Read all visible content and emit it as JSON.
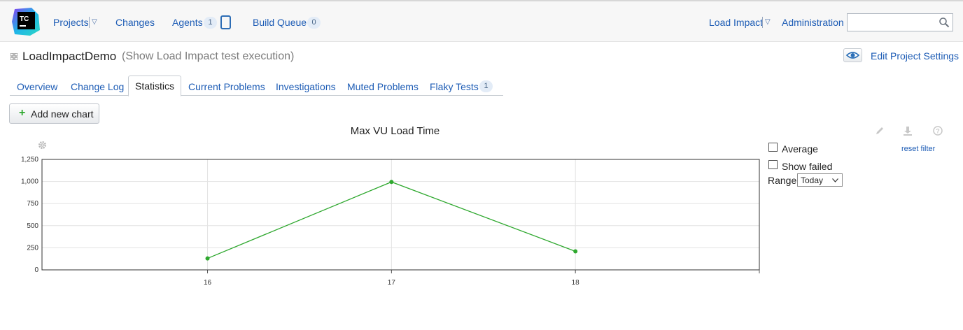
{
  "header": {
    "logo_text": "TC",
    "nav": {
      "projects": "Projects",
      "changes": "Changes",
      "agents": "Agents",
      "agents_count": "1",
      "build_queue": "Build Queue",
      "build_queue_count": "0",
      "user": "Load Impact",
      "administration": "Administration"
    },
    "search": {
      "value": "",
      "placeholder": ""
    }
  },
  "page": {
    "title": "LoadImpactDemo",
    "subtitle": "(Show Load Impact test execution)",
    "edit_settings": "Edit Project Settings"
  },
  "tabs": [
    {
      "label": "Overview"
    },
    {
      "label": "Change Log"
    },
    {
      "label": "Statistics",
      "active": true
    },
    {
      "label": "Current Problems"
    },
    {
      "label": "Investigations"
    },
    {
      "label": "Muted Problems"
    },
    {
      "label": "Flaky Tests",
      "badge": "1"
    }
  ],
  "toolbar": {
    "add_chart": "Add new chart"
  },
  "chart_controls": {
    "average": "Average",
    "show_failed": "Show failed",
    "reset_filter": "reset filter",
    "range_label": "Range",
    "range_value": "Today"
  },
  "icons": {
    "edit": "pencil-icon",
    "download": "download-icon",
    "help": "help-icon",
    "settings": "gear-icon",
    "view": "eye-icon",
    "search": "search-icon"
  },
  "colors": {
    "link": "#1d5cb5",
    "series": "#2ea82e",
    "badge_bg": "#e3ecf7"
  },
  "chart_data": {
    "type": "line",
    "title": "Max VU Load Time",
    "xlabel": "",
    "ylabel": "",
    "x": [
      16,
      17,
      18
    ],
    "series": [
      {
        "values": [
          130,
          995,
          210
        ],
        "color": "#2ea82e"
      }
    ],
    "xlim": [
      15.1,
      19
    ],
    "ylim": [
      0,
      1250
    ],
    "yticks": [
      0,
      250,
      500,
      750,
      1000,
      1250
    ],
    "ytick_labels": [
      "0",
      "250",
      "500",
      "750",
      "1,000",
      "1,250"
    ],
    "xtick_labels": [
      "16",
      "17",
      "18"
    ],
    "grid": true,
    "legend": "none"
  }
}
